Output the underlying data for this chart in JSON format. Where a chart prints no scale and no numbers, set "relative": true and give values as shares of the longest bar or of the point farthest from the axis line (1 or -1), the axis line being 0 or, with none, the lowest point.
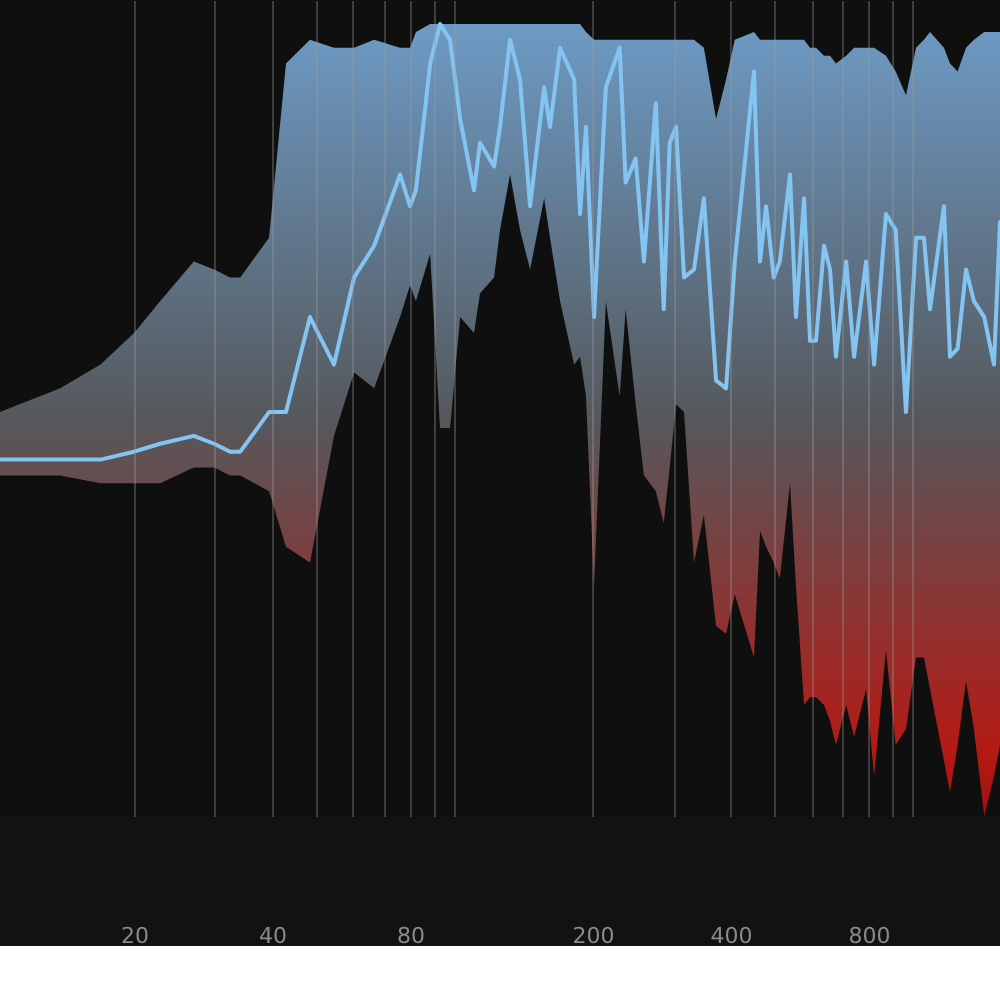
{
  "chart_data": {
    "type": "line",
    "relative": true,
    "log": "x",
    "grid": "x",
    "xlim": [
      10.2,
      1549
    ],
    "xticks": [
      20,
      {
        "value": 30,
        "label": null
      },
      40,
      {
        "value": 50,
        "label": null
      },
      {
        "value": 60,
        "label": null
      },
      {
        "value": 70,
        "label": null
      },
      80,
      {
        "value": 90,
        "label": null
      },
      {
        "value": 100,
        "label": null
      },
      200,
      {
        "value": 300,
        "label": null
      },
      400,
      {
        "value": 500,
        "label": null
      },
      {
        "value": 600,
        "label": null
      },
      {
        "value": 700,
        "label": null
      },
      800,
      {
        "value": 900,
        "label": null
      },
      {
        "value": 1000,
        "label": null
      }
    ],
    "series": [
      {
        "color": "#84c4f2",
        "x": [
          10.2,
          13.8,
          16.9,
          20,
          22.8,
          27.0,
          29.9,
          32.4,
          34.1,
          39.4,
          42.9,
          48.4,
          54.6,
          60.4,
          66.8,
          76.1,
          80,
          82.4,
          88.5,
          93.0,
          97.8,
          102.9,
          110.3,
          113.7,
          122.0,
          125.7,
          132.2,
          139.0,
          146.2,
          156.9,
          161.6,
          170,
          182.4,
          187.9,
          193.6,
          201.6,
          213.9,
          229.3,
          236.3,
          248.5,
          259.0,
          274.9,
          286.1,
          294.8,
          304.3,
          316.8,
          333.1,
          350.0,
          372.1,
          391.3,
          408.8,
          450.2,
          464.0,
          478.4,
          497.1,
          512.5,
          539.5,
          555.9,
          578.9,
          596.5,
          614.7,
          640,
          659.6,
          679.6,
          715.3,
          744.3,
          790.5,
          823,
          873.6,
          917.2,
          966,
          1016,
          1057,
          1090,
          1169,
          1205,
          1252,
          1306,
          1359,
          1431,
          1503,
          1549
        ],
        "values": [
          0.45,
          0.45,
          0.45,
          0.46,
          0.47,
          0.48,
          0.47,
          0.46,
          0.46,
          0.51,
          0.51,
          0.63,
          0.57,
          0.68,
          0.72,
          0.81,
          0.77,
          0.79,
          0.95,
          1.0,
          0.98,
          0.88,
          0.79,
          0.85,
          0.82,
          0.87,
          0.98,
          0.93,
          0.77,
          0.92,
          0.87,
          0.97,
          0.93,
          0.76,
          0.87,
          0.63,
          0.92,
          0.97,
          0.8,
          0.83,
          0.7,
          0.9,
          0.64,
          0.85,
          0.87,
          0.68,
          0.69,
          0.78,
          0.55,
          0.54,
          0.7,
          0.94,
          0.7,
          0.77,
          0.68,
          0.7,
          0.81,
          0.63,
          0.78,
          0.6,
          0.6,
          0.72,
          0.69,
          0.58,
          0.7,
          0.58,
          0.7,
          0.57,
          0.76,
          0.74,
          0.51,
          0.73,
          0.73,
          0.64,
          0.77,
          0.58,
          0.59,
          0.69,
          0.65,
          0.63,
          0.57,
          0.75
        ],
        "upper": [
          0.51,
          0.54,
          0.57,
          0.61,
          0.65,
          0.7,
          0.69,
          0.68,
          0.68,
          0.73,
          0.95,
          0.98,
          0.97,
          0.97,
          0.98,
          0.97,
          0.97,
          0.99,
          1.0,
          1.0,
          1.0,
          1.0,
          1.0,
          1.0,
          1.0,
          1.0,
          1.0,
          1.0,
          1.0,
          1.0,
          1.0,
          1.0,
          1.0,
          1.0,
          0.99,
          0.98,
          0.98,
          0.98,
          0.98,
          0.98,
          0.98,
          0.98,
          0.98,
          0.98,
          0.98,
          0.98,
          0.98,
          0.97,
          0.88,
          0.93,
          0.98,
          0.99,
          0.98,
          0.98,
          0.98,
          0.98,
          0.98,
          0.98,
          0.98,
          0.97,
          0.97,
          0.96,
          0.96,
          0.95,
          0.96,
          0.97,
          0.97,
          0.97,
          0.96,
          0.94,
          0.91,
          0.97,
          0.98,
          0.99,
          0.97,
          0.95,
          0.94,
          0.97,
          0.98,
          0.99,
          0.99,
          0.99
        ],
        "lower": [
          0.43,
          0.43,
          0.42,
          0.42,
          0.42,
          0.44,
          0.44,
          0.43,
          0.43,
          0.41,
          0.34,
          0.32,
          0.48,
          0.56,
          0.54,
          0.63,
          0.67,
          0.65,
          0.71,
          0.49,
          0.49,
          0.63,
          0.61,
          0.66,
          0.68,
          0.74,
          0.81,
          0.74,
          0.69,
          0.78,
          0.73,
          0.65,
          0.57,
          0.58,
          0.53,
          0.29,
          0.65,
          0.53,
          0.64,
          0.52,
          0.43,
          0.41,
          0.37,
          0.44,
          0.52,
          0.51,
          0.32,
          0.38,
          0.24,
          0.23,
          0.28,
          0.2,
          0.36,
          0.34,
          0.32,
          0.3,
          0.42,
          0.29,
          0.14,
          0.15,
          0.15,
          0.14,
          0.12,
          0.09,
          0.14,
          0.1,
          0.16,
          0.05,
          0.21,
          0.09,
          0.11,
          0.2,
          0.2,
          0.16,
          0.07,
          0.03,
          0.09,
          0.17,
          0.11,
          0.0,
          0.05,
          0.09
        ]
      }
    ]
  }
}
